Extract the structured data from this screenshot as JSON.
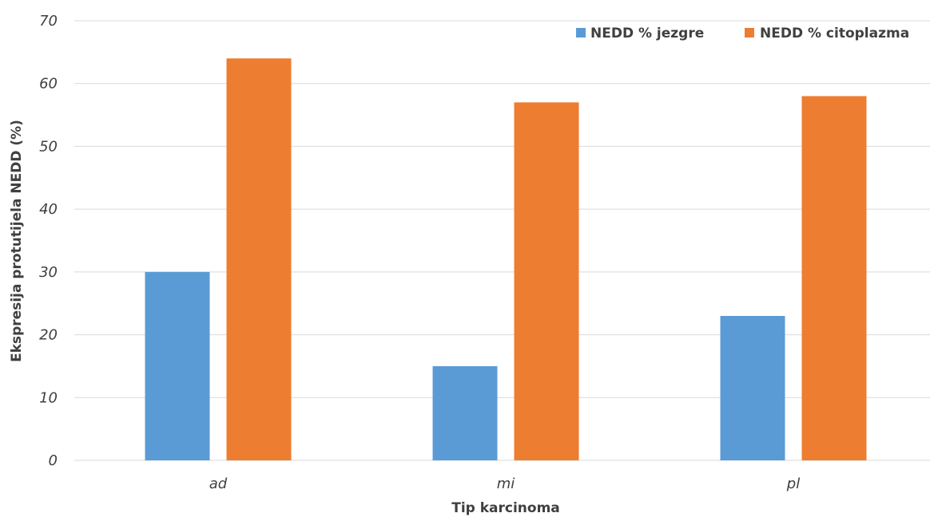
{
  "chart_data": {
    "type": "bar",
    "categories": [
      "ad",
      "mi",
      "pl"
    ],
    "series": [
      {
        "name": "NEDD % jezgre",
        "values": [
          30,
          15,
          23
        ],
        "color": "#5b9bd5"
      },
      {
        "name": "NEDD % citoplazma",
        "values": [
          64,
          57,
          58
        ],
        "color": "#ed7d31"
      }
    ],
    "title": "",
    "xlabel": "Tip karcinoma",
    "ylabel": "Ekspresija protutijela NEDD (%)",
    "ylim": [
      0,
      70
    ],
    "yticks": [
      0,
      10,
      20,
      30,
      40,
      50,
      60,
      70
    ],
    "grid": true,
    "legend_position": "top-right"
  }
}
